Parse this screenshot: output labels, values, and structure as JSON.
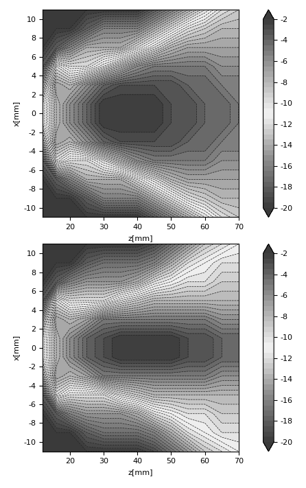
{
  "chart_data": [
    {
      "type": "contour",
      "x_label": "z[mm]",
      "y_label": "x[mm]",
      "x": [
        12,
        16,
        20,
        25,
        30,
        35,
        40,
        45,
        50,
        55,
        60,
        65,
        70
      ],
      "y": [
        -11,
        -9,
        -7,
        -5,
        -3,
        -1,
        1,
        3,
        5,
        7,
        9,
        11
      ],
      "cells": [
        [
          -20,
          -20,
          -20,
          -20,
          -20,
          -20,
          -20,
          -18,
          -16,
          -14,
          -12,
          -10,
          -9
        ],
        [
          -20,
          -20,
          -20,
          -18,
          -16,
          -16,
          -16,
          -14,
          -12,
          -10,
          -9,
          -8,
          -8
        ],
        [
          -20,
          -18,
          -16,
          -14,
          -14,
          -14,
          -12,
          -10,
          -8,
          -7,
          -7,
          -7,
          -7
        ],
        [
          -18,
          -10,
          -12,
          -12,
          -10,
          -8,
          -6,
          -5,
          -5,
          -5,
          -5,
          -6,
          -6
        ],
        [
          -14,
          -7,
          -8,
          -6,
          -4,
          -3,
          -3,
          -3,
          -3,
          -4,
          -4,
          -5,
          -5
        ],
        [
          -12,
          -8,
          -6,
          -4,
          -2,
          -2,
          -2,
          -2,
          -3,
          -3,
          -4,
          -4,
          -5
        ],
        [
          -12,
          -8,
          -6,
          -4,
          -2,
          -2,
          -2,
          -2,
          -3,
          -3,
          -4,
          -4,
          -5
        ],
        [
          -14,
          -7,
          -8,
          -6,
          -4,
          -3,
          -3,
          -3,
          -3,
          -4,
          -4,
          -5,
          -5
        ],
        [
          -18,
          -10,
          -12,
          -12,
          -10,
          -8,
          -6,
          -5,
          -5,
          -5,
          -5,
          -6,
          -6
        ],
        [
          -20,
          -18,
          -16,
          -14,
          -14,
          -14,
          -12,
          -10,
          -8,
          -7,
          -7,
          -7,
          -7
        ],
        [
          -20,
          -20,
          -20,
          -18,
          -16,
          -16,
          -16,
          -14,
          -12,
          -10,
          -9,
          -8,
          -8
        ],
        [
          -20,
          -20,
          -20,
          -20,
          -20,
          -20,
          -20,
          -18,
          -16,
          -14,
          -12,
          -10,
          -9
        ]
      ],
      "xlim": [
        12,
        70
      ],
      "ylim": [
        -11,
        11
      ],
      "xticks": [
        20,
        30,
        40,
        50,
        60,
        70
      ],
      "yticks": [
        -10,
        -8,
        -6,
        -4,
        -2,
        0,
        2,
        4,
        6,
        8,
        10
      ],
      "colorbar_range": [
        -20,
        -2
      ],
      "colorbar_ticks": [
        -20,
        -18,
        -16,
        -14,
        -12,
        -10,
        -8,
        -6,
        -4,
        -2
      ]
    },
    {
      "type": "contour",
      "x_label": "z[mm]",
      "y_label": "x[mm]",
      "x": [
        12,
        16,
        20,
        25,
        30,
        35,
        40,
        45,
        50,
        55,
        60,
        65,
        70
      ],
      "y": [
        -11,
        -9,
        -7,
        -5,
        -3,
        -1,
        1,
        3,
        5,
        7,
        9,
        11
      ],
      "cells": [
        [
          -20,
          -20,
          -20,
          -20,
          -20,
          -20,
          -20,
          -19,
          -17,
          -15,
          -13,
          -12,
          -11
        ],
        [
          -20,
          -20,
          -20,
          -18,
          -17,
          -17,
          -17,
          -16,
          -14,
          -12,
          -11,
          -10,
          -10
        ],
        [
          -20,
          -18,
          -16,
          -15,
          -15,
          -15,
          -14,
          -12,
          -11,
          -10,
          -10,
          -9,
          -9
        ],
        [
          -18,
          -10,
          -12,
          -12,
          -12,
          -10,
          -9,
          -8,
          -8,
          -8,
          -8,
          -8,
          -8
        ],
        [
          -14,
          -7,
          -8,
          -7,
          -5,
          -5,
          -5,
          -5,
          -5,
          -5,
          -5,
          -6,
          -6
        ],
        [
          -12,
          -8,
          -6,
          -4,
          -3,
          -2,
          -2,
          -2,
          -2,
          -3,
          -3,
          -4,
          -4
        ],
        [
          -12,
          -8,
          -6,
          -4,
          -3,
          -2,
          -2,
          -2,
          -2,
          -3,
          -3,
          -4,
          -4
        ],
        [
          -14,
          -7,
          -8,
          -7,
          -5,
          -5,
          -5,
          -5,
          -5,
          -5,
          -5,
          -6,
          -6
        ],
        [
          -18,
          -10,
          -12,
          -12,
          -12,
          -10,
          -9,
          -8,
          -8,
          -8,
          -8,
          -8,
          -8
        ],
        [
          -20,
          -18,
          -16,
          -15,
          -15,
          -15,
          -14,
          -12,
          -11,
          -10,
          -10,
          -9,
          -9
        ],
        [
          -20,
          -20,
          -20,
          -18,
          -17,
          -17,
          -17,
          -16,
          -14,
          -12,
          -11,
          -10,
          -10
        ],
        [
          -20,
          -20,
          -20,
          -20,
          -20,
          -20,
          -20,
          -19,
          -17,
          -15,
          -13,
          -12,
          -11
        ]
      ],
      "xlim": [
        12,
        70
      ],
      "ylim": [
        -11,
        11
      ],
      "xticks": [
        20,
        30,
        40,
        50,
        60,
        70
      ],
      "yticks": [
        -10,
        -8,
        -6,
        -4,
        -2,
        0,
        2,
        4,
        6,
        8,
        10
      ],
      "colorbar_range": [
        -20,
        -2
      ],
      "colorbar_ticks": [
        -20,
        -18,
        -16,
        -14,
        -12,
        -10,
        -8,
        -6,
        -4,
        -2
      ]
    }
  ]
}
